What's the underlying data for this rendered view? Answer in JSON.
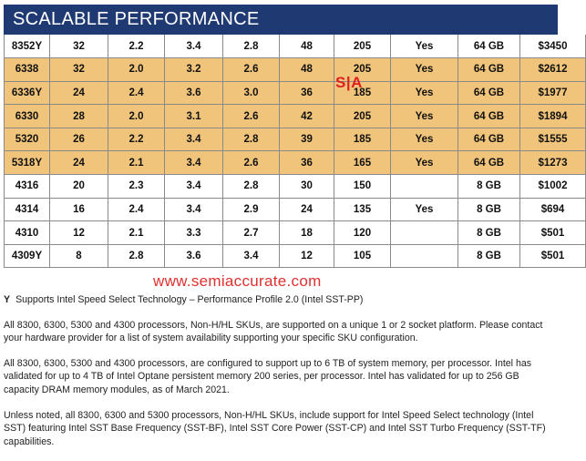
{
  "header": {
    "title": "SCALABLE PERFORMANCE"
  },
  "table": {
    "rows": [
      {
        "style": "white",
        "cells": [
          "8352Y",
          "32",
          "2.2",
          "3.4",
          "2.8",
          "48",
          "205",
          "Yes",
          "64 GB",
          "$3450"
        ]
      },
      {
        "style": "gold",
        "cells": [
          "6338",
          "32",
          "2.0",
          "3.2",
          "2.6",
          "48",
          "205",
          "Yes",
          "64 GB",
          "$2612"
        ]
      },
      {
        "style": "gold",
        "cells": [
          "6336Y",
          "24",
          "2.4",
          "3.6",
          "3.0",
          "36",
          "185",
          "Yes",
          "64 GB",
          "$1977"
        ]
      },
      {
        "style": "gold",
        "cells": [
          "6330",
          "28",
          "2.0",
          "3.1",
          "2.6",
          "42",
          "205",
          "Yes",
          "64 GB",
          "$1894"
        ]
      },
      {
        "style": "gold",
        "cells": [
          "5320",
          "26",
          "2.2",
          "3.4",
          "2.8",
          "39",
          "185",
          "Yes",
          "64 GB",
          "$1555"
        ]
      },
      {
        "style": "gold",
        "cells": [
          "5318Y",
          "24",
          "2.1",
          "3.4",
          "2.6",
          "36",
          "165",
          "Yes",
          "64 GB",
          "$1273"
        ]
      },
      {
        "style": "white",
        "cells": [
          "4316",
          "20",
          "2.3",
          "3.4",
          "2.8",
          "30",
          "150",
          "",
          "8 GB",
          "$1002"
        ]
      },
      {
        "style": "white",
        "cells": [
          "4314",
          "16",
          "2.4",
          "3.4",
          "2.9",
          "24",
          "135",
          "Yes",
          "8 GB",
          "$694"
        ]
      },
      {
        "style": "white",
        "cells": [
          "4310",
          "12",
          "2.1",
          "3.3",
          "2.7",
          "18",
          "120",
          "",
          "8 GB",
          "$501"
        ]
      },
      {
        "style": "white",
        "cells": [
          "4309Y",
          "8",
          "2.8",
          "3.6",
          "3.4",
          "12",
          "105",
          "",
          "8 GB",
          "$501"
        ]
      }
    ]
  },
  "watermark": {
    "logo": "S|A",
    "url": "www.semiaccurate.com"
  },
  "notes": {
    "y_mark": "Y",
    "y_text": "Supports Intel Speed Select Technology – Performance Profile 2.0 (Intel SST-PP)",
    "para1": "All 8300, 6300, 5300 and 4300 processors, Non-H/HL SKUs, are supported on a unique 1 or 2 socket platform.  Please contact your hardware provider for a list of system availability supporting your specific SKU configuration.",
    "para2": "All 8300, 6300, 5300 and 4300 processors, are configured to support up to 6 TB of system memory, per processor. Intel has validated for up to 4 TB of Intel Optane persistent memory 200 series, per processor. Intel has validated for up to 256 GB capacity DRAM memory modules, as of March 2021.",
    "para3": "Unless noted, all 8300, 6300 and 5300 processors, Non-H/HL SKUs, include support for Intel Speed Select technology (Intel SST) featuring Intel SST Base Frequency (SST-BF), Intel SST Core Power (SST-CP) and Intel SST Turbo Frequency (SST-TF) capabilities."
  }
}
